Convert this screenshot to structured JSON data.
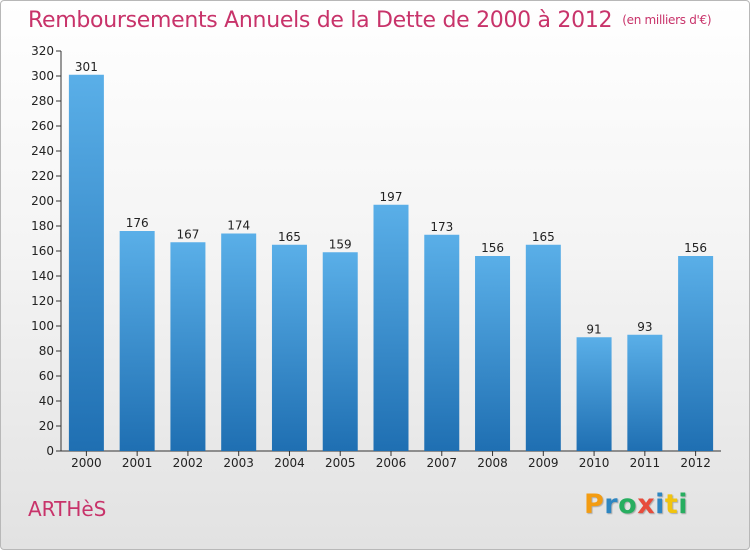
{
  "header": {
    "title": "Remboursements Annuels de la Dette de 2000 à 2012",
    "unit": "(en milliers d'€)"
  },
  "footer": {
    "commune": "ARTHèS",
    "logo_letters": [
      "P",
      "r",
      "o",
      "x",
      "i",
      "t",
      "i"
    ]
  },
  "chart_data": {
    "type": "bar",
    "title": "Remboursements Annuels de la Dette de 2000 à 2012",
    "subtitle": "(en milliers d'€)",
    "xlabel": "",
    "ylabel": "",
    "categories": [
      "2000",
      "2001",
      "2002",
      "2003",
      "2004",
      "2005",
      "2006",
      "2007",
      "2008",
      "2009",
      "2010",
      "2011",
      "2012"
    ],
    "values": [
      301,
      176,
      167,
      174,
      165,
      159,
      197,
      173,
      156,
      165,
      91,
      93,
      156
    ],
    "ylim": [
      0,
      320
    ],
    "yticks": [
      0,
      20,
      40,
      60,
      80,
      100,
      120,
      140,
      160,
      180,
      200,
      220,
      240,
      260,
      280,
      300,
      320
    ],
    "grid": false,
    "data_labels": true,
    "colors": {
      "bar_light": "#5aafe8",
      "bar_dark": "#1f6fb2",
      "title": "#c8336a"
    }
  }
}
